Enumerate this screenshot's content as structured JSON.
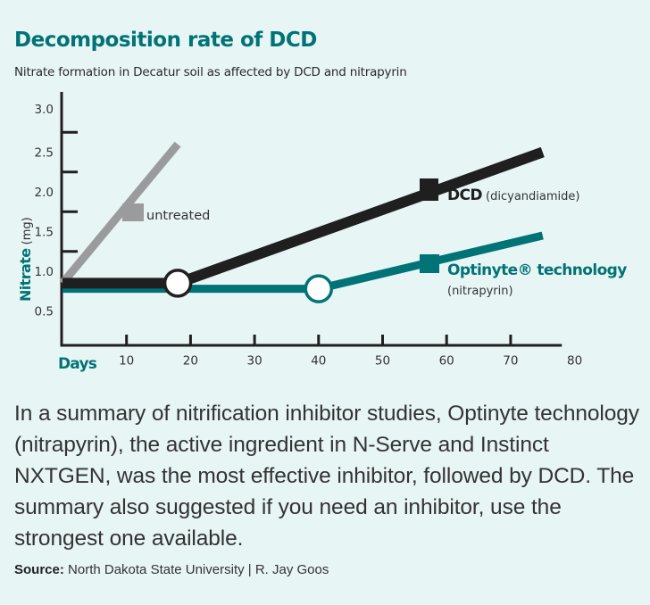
{
  "header": {
    "title": "Decomposition rate of DCD",
    "subtitle": "Nitrate formation in Decatur soil as affected by DCD and nitrapyrin"
  },
  "colors": {
    "teal": "#007377",
    "black": "#1f1f1f",
    "gray": "#9a9b9c",
    "background": "#e8f5f5"
  },
  "chart_data": {
    "type": "line",
    "title": "Decomposition rate of DCD",
    "subtitle": "Nitrate formation in Decatur soil as affected by DCD and nitrapyrin",
    "xlabel": "Days",
    "ylabel_bold": "Nitrate",
    "ylabel_unit": "(mg)",
    "xlim": [
      0,
      80
    ],
    "ylim": [
      0,
      3.0
    ],
    "x_ticks": [
      10,
      20,
      30,
      40,
      50,
      60,
      70,
      80
    ],
    "x_tick_labels": [
      "10",
      "20",
      "30",
      "40",
      "50",
      "60",
      "70",
      "80"
    ],
    "y_ticks": [
      0.5,
      1.0,
      1.5,
      2.0,
      2.5,
      3.0
    ],
    "y_tick_labels": [
      "0.5",
      "1.0",
      "1.5",
      "2.0",
      "2.5",
      "3.0"
    ],
    "grid": false,
    "series": [
      {
        "name": "untreated",
        "label": "untreated",
        "color": "#9a9b9c",
        "x": [
          0,
          18
        ],
        "y": [
          0.85,
          2.6
        ]
      },
      {
        "name": "DCD",
        "label_bold": "DCD",
        "label_rest": "(dicyandiamide)",
        "color": "#1f1f1f",
        "x": [
          0,
          18,
          75
        ],
        "y": [
          0.85,
          0.85,
          2.5
        ],
        "marker_at": 18
      },
      {
        "name": "Optinyte technology",
        "label_bold": "Optinyte® technology",
        "label_sub": "(nitrapyrin)",
        "color": "#007377",
        "x": [
          0,
          40,
          75
        ],
        "y": [
          0.78,
          0.78,
          1.45
        ],
        "marker_at": 40
      }
    ]
  },
  "body": {
    "paragraph": "In a summary of nitrification inhibitor studies, Optinyte technology (nitrapyrin), the active ingredient in N-Serve and Instinct NXTGEN, was the most effective inhibitor, followed by DCD. The summary also suggested if you need an inhibitor, use the strongest one available."
  },
  "source": {
    "label": "Source:",
    "text": " North Dakota State University | R. Jay Goos"
  }
}
